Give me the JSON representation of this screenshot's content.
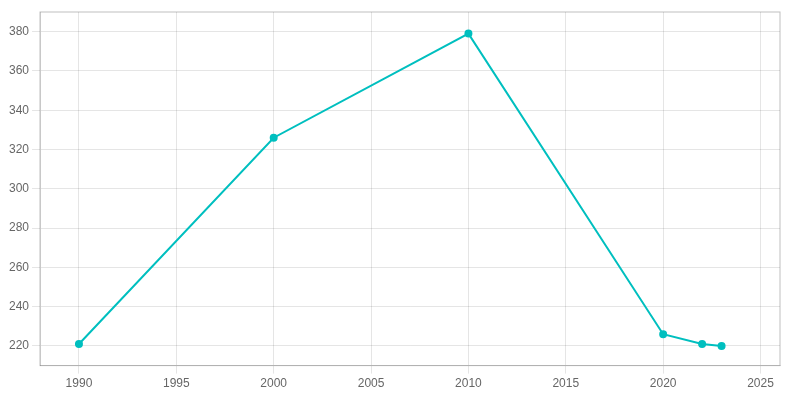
{
  "chart_data": {
    "type": "line",
    "x": [
      1990,
      2000,
      2010,
      2020,
      2022,
      2023
    ],
    "values": [
      221,
      326,
      379,
      226,
      221,
      220
    ],
    "color": "#00BFBF",
    "marker": "circle",
    "xlim": [
      1988,
      2026
    ],
    "ylim": [
      210,
      390
    ],
    "xticks": [
      1990,
      1995,
      2000,
      2005,
      2010,
      2015,
      2020,
      2025
    ],
    "yticks": [
      220,
      240,
      260,
      280,
      300,
      320,
      340,
      360,
      380
    ],
    "grid": true
  }
}
